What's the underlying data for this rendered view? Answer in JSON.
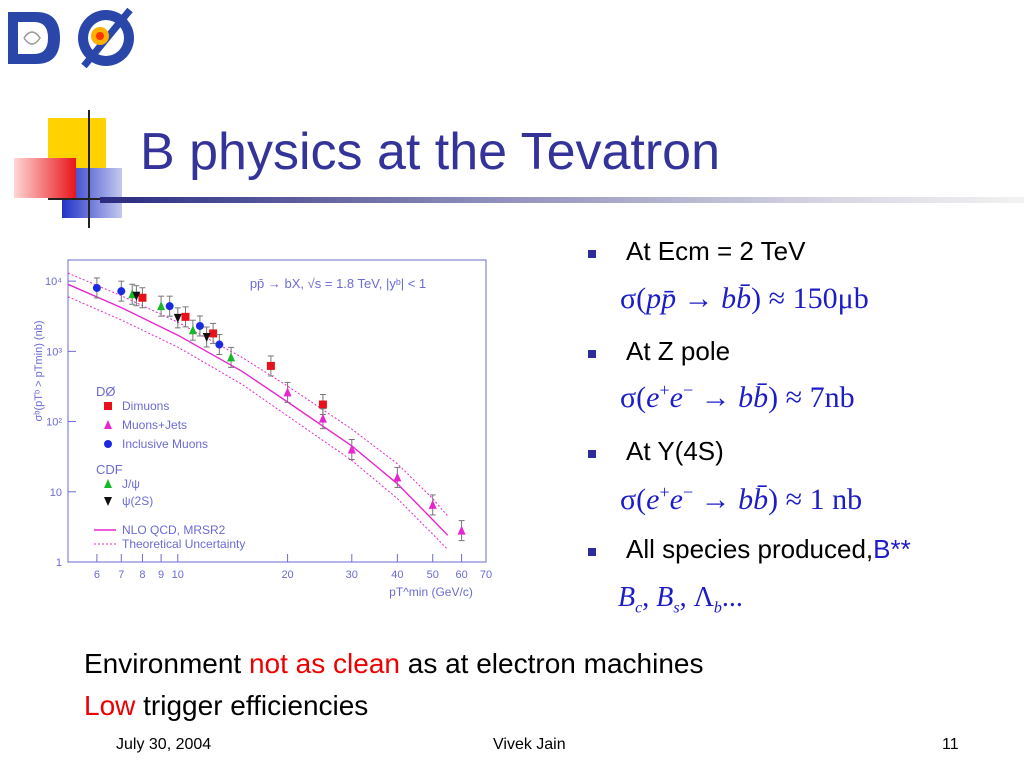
{
  "logo": {
    "text": "DØ"
  },
  "title": "B physics at the Tevatron",
  "bullets": [
    {
      "text": "At Ecm = 2 TeV"
    },
    {
      "text": "At Z pole"
    },
    {
      "text": "At Y(4S)"
    },
    {
      "text": "All species produced,",
      "suffix": "B**"
    }
  ],
  "formulas": {
    "f1": {
      "sigma": "σ(",
      "pp": "pp̄",
      "arrow": " → ",
      "bb": "bb̄",
      "rest": ") ≈ 150μb"
    },
    "f2": {
      "lead": "σ(",
      "e1": "e",
      "sup1": "+",
      "e2": "e",
      "sup2": "−",
      "arrow": " → ",
      "bb": "bb̄",
      "rest": ") ≈ 7nb"
    },
    "f3": {
      "lead": "σ(",
      "e1": "e",
      "sup1": "+",
      "e2": "e",
      "sup2": "−",
      "arrow": " → ",
      "bb": "bb̄",
      "rest": ") ≈ 1 nb"
    },
    "f4": {
      "b1": "B",
      "s1": "c",
      "b2": "B",
      "s2": "s",
      "b3": "Λ",
      "s3": "b",
      "sep": ", ",
      "tail": "..."
    }
  },
  "environment": {
    "pre": "Environment ",
    "red": "not as clean",
    "post": " as at electron machines"
  },
  "trigger": {
    "red": "Low",
    "post": " trigger efficiencies"
  },
  "footer": {
    "date": "July 30, 2004",
    "author": "Vivek Jain",
    "page": "11"
  },
  "chart_data": {
    "type": "scatter",
    "title": "pp̄ → bX, √s = 1.8 TeV, |yᵇ| < 1",
    "xlabel": "pT^min (GeV/c)",
    "ylabel": "σᵇ(pTᵇ > pTmin) (nb)",
    "xscale": "log",
    "yscale": "log",
    "xlim": [
      5,
      70
    ],
    "ylim": [
      1,
      20000
    ],
    "xticks": [
      "6",
      "7",
      "8",
      "9",
      "10",
      "20",
      "30",
      "40",
      "50",
      "60",
      "70"
    ],
    "yticks": [
      "1",
      "10",
      "10²",
      "10³",
      "10⁴"
    ],
    "legend_groups": [
      "DØ",
      "CDF"
    ],
    "series": [
      {
        "name": "Dimuons",
        "color": "#e8101a",
        "marker": "square",
        "points": [
          [
            8,
            5800
          ],
          [
            10.5,
            3100
          ],
          [
            12.5,
            1800
          ],
          [
            18,
            620
          ],
          [
            25,
            175
          ]
        ]
      },
      {
        "name": "Muons+Jets",
        "color": "#e826d0",
        "marker": "triangle-up",
        "points": [
          [
            20,
            260
          ],
          [
            25,
            110
          ],
          [
            30,
            40
          ],
          [
            40,
            16
          ],
          [
            50,
            6.5
          ],
          [
            60,
            2.8
          ]
        ]
      },
      {
        "name": "Inclusive Muons",
        "color": "#1a2ae0",
        "marker": "circle",
        "points": [
          [
            6,
            8000
          ],
          [
            7,
            7200
          ],
          [
            9.5,
            4400
          ],
          [
            11.5,
            2300
          ],
          [
            13,
            1250
          ]
        ]
      },
      {
        "name": "J/ψ",
        "color": "#18b82a",
        "marker": "triangle-up",
        "points": [
          [
            7.5,
            6500
          ],
          [
            9,
            4400
          ],
          [
            11,
            2000
          ],
          [
            14,
            820
          ]
        ]
      },
      {
        "name": "ψ(2S)",
        "color": "#111111",
        "marker": "triangle-down",
        "points": [
          [
            7.7,
            6200
          ],
          [
            10,
            3000
          ],
          [
            12,
            1600
          ]
        ]
      }
    ],
    "theory": [
      {
        "name": "NLO QCD, MRSR2",
        "color": "#e826d0",
        "style": "solid",
        "points": [
          [
            5,
            9000
          ],
          [
            7,
            4200
          ],
          [
            10,
            1700
          ],
          [
            15,
            520
          ],
          [
            20,
            190
          ],
          [
            30,
            45
          ],
          [
            40,
            13
          ],
          [
            50,
            4
          ],
          [
            55,
            2.4
          ]
        ]
      },
      {
        "name": "Theoretical Uncertainty",
        "color": "#e826d0",
        "style": "dotted",
        "points": [
          [
            5,
            13000
          ],
          [
            7,
            6200
          ],
          [
            10,
            2600
          ],
          [
            15,
            820
          ],
          [
            20,
            320
          ],
          [
            30,
            78
          ],
          [
            40,
            25
          ],
          [
            50,
            8
          ],
          [
            55,
            4.5
          ]
        ]
      },
      {
        "name": "Theoretical Uncertainty",
        "color": "#e826d0",
        "style": "dotted",
        "points": [
          [
            5,
            6000
          ],
          [
            7,
            2800
          ],
          [
            10,
            1150
          ],
          [
            15,
            340
          ],
          [
            20,
            120
          ],
          [
            30,
            28
          ],
          [
            40,
            8
          ],
          [
            50,
            2.5
          ],
          [
            55,
            1.5
          ]
        ]
      }
    ]
  }
}
